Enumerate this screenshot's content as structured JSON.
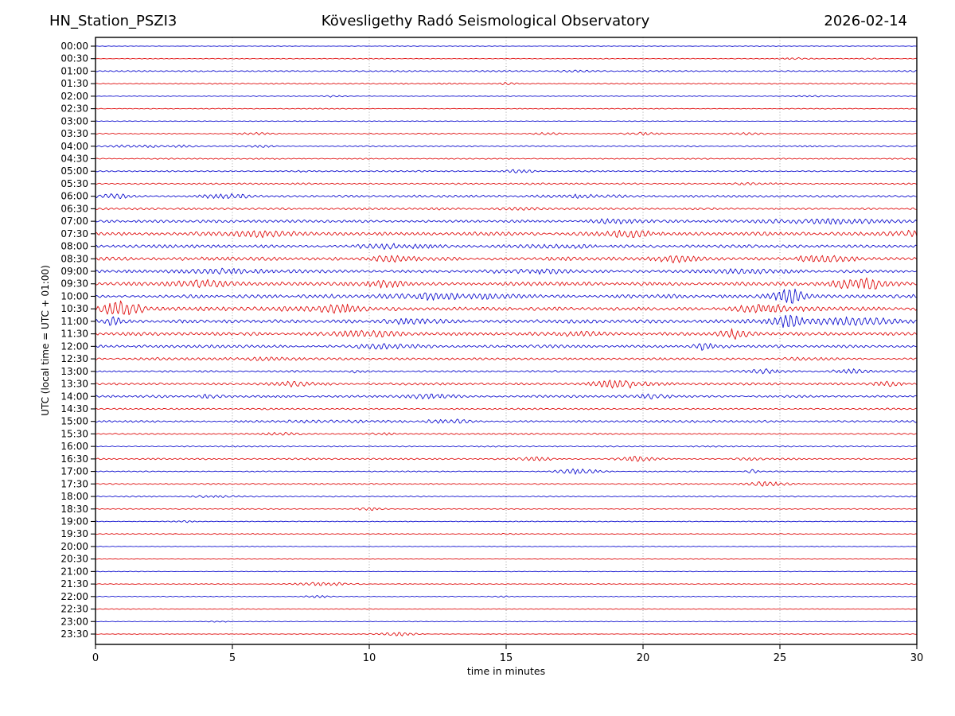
{
  "header": {
    "station": "HN_Station_PSZI3",
    "observatory": "Kövesligethy Radó Seismological Observatory",
    "date": "2026-02-14"
  },
  "chart_data": {
    "type": "line",
    "subtype": "helicorder-dayplot",
    "title": "Kövesligethy Radó Seismological Observatory",
    "station": "HN_Station_PSZI3",
    "date": "2026-02-14",
    "xlabel": "time in minutes",
    "ylabel": "UTC (local time = UTC + 01:00)",
    "xlim": [
      0,
      30
    ],
    "x_ticks": [
      0,
      5,
      10,
      15,
      20,
      25,
      30
    ],
    "minutes_per_row": 30,
    "grid": "vertical dotted lines every 5 minutes",
    "legend": "none",
    "palette": {
      "blue": "#1212cf",
      "red": "#e01212"
    },
    "rows": [
      {
        "label": "00:00",
        "color": "blue",
        "noise_amp": 0.35,
        "events": []
      },
      {
        "label": "00:30",
        "color": "red",
        "noise_amp": 0.45,
        "events": [
          {
            "t_min": 25.6,
            "amp": 0.9,
            "dur_min": 0.4
          },
          {
            "t_min": 28.3,
            "amp": 0.8,
            "dur_min": 0.3
          }
        ]
      },
      {
        "label": "01:00",
        "color": "blue",
        "noise_amp": 0.85,
        "events": [
          {
            "t_min": 17.5,
            "amp": 0.9,
            "dur_min": 0.4
          }
        ]
      },
      {
        "label": "01:30",
        "color": "red",
        "noise_amp": 0.75,
        "events": [
          {
            "t_min": 15.0,
            "amp": 1.4,
            "dur_min": 0.25
          }
        ]
      },
      {
        "label": "02:00",
        "color": "blue",
        "noise_amp": 0.45,
        "events": [
          {
            "t_min": 8.8,
            "amp": 0.9,
            "dur_min": 0.4
          },
          {
            "t_min": 26.0,
            "amp": 0.8,
            "dur_min": 0.3
          }
        ]
      },
      {
        "label": "02:30",
        "color": "red",
        "noise_amp": 0.5,
        "events": []
      },
      {
        "label": "03:00",
        "color": "blue",
        "noise_amp": 0.45,
        "events": []
      },
      {
        "label": "03:30",
        "color": "red",
        "noise_amp": 0.7,
        "events": [
          {
            "t_min": 6.0,
            "amp": 1.1,
            "dur_min": 0.5
          },
          {
            "t_min": 16.5,
            "amp": 1.0,
            "dur_min": 0.4
          },
          {
            "t_min": 20.0,
            "amp": 1.2,
            "dur_min": 0.5
          },
          {
            "t_min": 24.0,
            "amp": 1.0,
            "dur_min": 0.4
          }
        ]
      },
      {
        "label": "04:00",
        "color": "blue",
        "noise_amp": 0.75,
        "events": [
          {
            "t_min": 1.5,
            "amp": 1.7,
            "dur_min": 0.6
          },
          {
            "t_min": 3.2,
            "amp": 1.4,
            "dur_min": 0.3
          },
          {
            "t_min": 6.0,
            "amp": 1.5,
            "dur_min": 0.4
          }
        ]
      },
      {
        "label": "04:30",
        "color": "red",
        "noise_amp": 0.75,
        "events": []
      },
      {
        "label": "05:00",
        "color": "blue",
        "noise_amp": 0.8,
        "events": [
          {
            "t_min": 7.5,
            "amp": 1.2,
            "dur_min": 0.4
          },
          {
            "t_min": 15.5,
            "amp": 1.5,
            "dur_min": 0.5
          }
        ]
      },
      {
        "label": "05:30",
        "color": "red",
        "noise_amp": 1.0,
        "events": [
          {
            "t_min": 24.0,
            "amp": 1.4,
            "dur_min": 0.6
          }
        ]
      },
      {
        "label": "06:00",
        "color": "blue",
        "noise_amp": 1.5,
        "events": [
          {
            "t_min": 0.7,
            "amp": 1.6,
            "dur_min": 0.5
          },
          {
            "t_min": 5.0,
            "amp": 1.8,
            "dur_min": 0.7
          },
          {
            "t_min": 18.0,
            "amp": 2.0,
            "dur_min": 0.7
          }
        ]
      },
      {
        "label": "06:30",
        "color": "red",
        "noise_amp": 1.25,
        "events": [
          {
            "t_min": 15.5,
            "amp": 1.6,
            "dur_min": 0.5
          }
        ]
      },
      {
        "label": "07:00",
        "color": "blue",
        "noise_amp": 1.7,
        "events": [
          {
            "t_min": 19.0,
            "amp": 2.6,
            "dur_min": 0.9
          },
          {
            "t_min": 27.0,
            "amp": 2.2,
            "dur_min": 1.5
          }
        ]
      },
      {
        "label": "07:30",
        "color": "red",
        "noise_amp": 2.1,
        "events": [
          {
            "t_min": 6.0,
            "amp": 2.6,
            "dur_min": 0.9
          },
          {
            "t_min": 19.5,
            "amp": 3.2,
            "dur_min": 0.7
          },
          {
            "t_min": 29.6,
            "amp": 3.6,
            "dur_min": 0.4
          }
        ]
      },
      {
        "label": "08:00",
        "color": "blue",
        "noise_amp": 1.9,
        "events": [
          {
            "t_min": 11.0,
            "amp": 2.6,
            "dur_min": 0.9
          },
          {
            "t_min": 17.0,
            "amp": 2.2,
            "dur_min": 0.8
          }
        ]
      },
      {
        "label": "08:30",
        "color": "red",
        "noise_amp": 2.1,
        "events": [
          {
            "t_min": 11.0,
            "amp": 3.6,
            "dur_min": 0.5
          },
          {
            "t_min": 21.0,
            "amp": 3.6,
            "dur_min": 0.6
          },
          {
            "t_min": 26.5,
            "amp": 2.6,
            "dur_min": 0.8
          }
        ]
      },
      {
        "label": "09:00",
        "color": "blue",
        "noise_amp": 1.9,
        "events": [
          {
            "t_min": 5.0,
            "amp": 2.6,
            "dur_min": 0.9
          },
          {
            "t_min": 16.0,
            "amp": 2.6,
            "dur_min": 1.2
          },
          {
            "t_min": 24.0,
            "amp": 2.4,
            "dur_min": 0.8
          }
        ]
      },
      {
        "label": "09:30",
        "color": "red",
        "noise_amp": 2.1,
        "events": [
          {
            "t_min": 4.0,
            "amp": 3.0,
            "dur_min": 0.7
          },
          {
            "t_min": 10.5,
            "amp": 3.2,
            "dur_min": 0.5
          },
          {
            "t_min": 27.8,
            "amp": 4.6,
            "dur_min": 1.0
          }
        ]
      },
      {
        "label": "10:00",
        "color": "blue",
        "noise_amp": 2.1,
        "events": [
          {
            "t_min": 12.5,
            "amp": 3.6,
            "dur_min": 1.6
          },
          {
            "t_min": 25.4,
            "amp": 7.5,
            "dur_min": 0.4
          }
        ]
      },
      {
        "label": "10:30",
        "color": "red",
        "noise_amp": 2.3,
        "events": [
          {
            "t_min": 0.9,
            "amp": 10.5,
            "dur_min": 0.45
          },
          {
            "t_min": 8.6,
            "amp": 3.6,
            "dur_min": 0.8
          },
          {
            "t_min": 24.5,
            "amp": 3.2,
            "dur_min": 0.8
          }
        ]
      },
      {
        "label": "11:00",
        "color": "blue",
        "noise_amp": 2.1,
        "events": [
          {
            "t_min": 0.6,
            "amp": 4.5,
            "dur_min": 0.3
          },
          {
            "t_min": 11.5,
            "amp": 3.2,
            "dur_min": 0.7
          },
          {
            "t_min": 25.2,
            "amp": 8.5,
            "dur_min": 0.35
          },
          {
            "t_min": 27.5,
            "amp": 3.0,
            "dur_min": 1.2
          }
        ]
      },
      {
        "label": "11:30",
        "color": "red",
        "noise_amp": 2.1,
        "events": [
          {
            "t_min": 10.0,
            "amp": 3.2,
            "dur_min": 0.9
          },
          {
            "t_min": 17.5,
            "amp": 2.8,
            "dur_min": 0.7
          },
          {
            "t_min": 23.4,
            "amp": 6.5,
            "dur_min": 0.35
          }
        ]
      },
      {
        "label": "12:00",
        "color": "blue",
        "noise_amp": 1.7,
        "events": [
          {
            "t_min": 10.5,
            "amp": 2.8,
            "dur_min": 0.7
          },
          {
            "t_min": 22.2,
            "amp": 4.2,
            "dur_min": 0.35
          }
        ]
      },
      {
        "label": "12:30",
        "color": "red",
        "noise_amp": 1.35,
        "events": [
          {
            "t_min": 6.0,
            "amp": 1.8,
            "dur_min": 0.8
          },
          {
            "t_min": 26.0,
            "amp": 1.6,
            "dur_min": 0.6
          }
        ]
      },
      {
        "label": "13:00",
        "color": "blue",
        "noise_amp": 1.15,
        "events": [
          {
            "t_min": 9.5,
            "amp": 1.8,
            "dur_min": 0.25
          },
          {
            "t_min": 24.5,
            "amp": 2.8,
            "dur_min": 0.4
          },
          {
            "t_min": 27.5,
            "amp": 2.2,
            "dur_min": 0.4
          }
        ]
      },
      {
        "label": "13:30",
        "color": "red",
        "noise_amp": 1.5,
        "events": [
          {
            "t_min": 7.3,
            "amp": 3.2,
            "dur_min": 0.4
          },
          {
            "t_min": 19.3,
            "amp": 3.6,
            "dur_min": 0.7
          },
          {
            "t_min": 29.0,
            "amp": 2.6,
            "dur_min": 0.4
          }
        ]
      },
      {
        "label": "14:00",
        "color": "blue",
        "noise_amp": 1.4,
        "events": [
          {
            "t_min": 4.3,
            "amp": 1.8,
            "dur_min": 0.35
          },
          {
            "t_min": 12.3,
            "amp": 2.8,
            "dur_min": 0.5
          },
          {
            "t_min": 20.5,
            "amp": 2.2,
            "dur_min": 0.45
          }
        ]
      },
      {
        "label": "14:30",
        "color": "red",
        "noise_amp": 0.95,
        "events": []
      },
      {
        "label": "15:00",
        "color": "blue",
        "noise_amp": 1.2,
        "events": [
          {
            "t_min": 9.0,
            "amp": 1.0,
            "dur_min": 2.0
          },
          {
            "t_min": 13.0,
            "amp": 1.8,
            "dur_min": 0.6
          }
        ]
      },
      {
        "label": "15:30",
        "color": "red",
        "noise_amp": 0.85,
        "events": [
          {
            "t_min": 6.8,
            "amp": 1.7,
            "dur_min": 0.4
          },
          {
            "t_min": 10.5,
            "amp": 1.4,
            "dur_min": 0.35
          }
        ]
      },
      {
        "label": "16:00",
        "color": "blue",
        "noise_amp": 0.75,
        "events": []
      },
      {
        "label": "16:30",
        "color": "red",
        "noise_amp": 0.95,
        "events": [
          {
            "t_min": 16.0,
            "amp": 1.8,
            "dur_min": 0.5
          },
          {
            "t_min": 19.7,
            "amp": 2.8,
            "dur_min": 0.5
          },
          {
            "t_min": 23.8,
            "amp": 1.4,
            "dur_min": 0.4
          }
        ]
      },
      {
        "label": "17:00",
        "color": "blue",
        "noise_amp": 0.7,
        "events": [
          {
            "t_min": 17.6,
            "amp": 2.6,
            "dur_min": 0.5
          },
          {
            "t_min": 24.0,
            "amp": 3.2,
            "dur_min": 0.12
          }
        ]
      },
      {
        "label": "17:30",
        "color": "red",
        "noise_amp": 0.75,
        "events": [
          {
            "t_min": 24.5,
            "amp": 2.2,
            "dur_min": 0.5
          }
        ]
      },
      {
        "label": "18:00",
        "color": "blue",
        "noise_amp": 0.7,
        "events": [
          {
            "t_min": 4.5,
            "amp": 1.0,
            "dur_min": 0.8
          }
        ]
      },
      {
        "label": "18:30",
        "color": "red",
        "noise_amp": 0.6,
        "events": [
          {
            "t_min": 10.0,
            "amp": 1.7,
            "dur_min": 0.4
          }
        ]
      },
      {
        "label": "19:00",
        "color": "blue",
        "noise_amp": 0.5,
        "events": [
          {
            "t_min": 3.3,
            "amp": 0.8,
            "dur_min": 0.3
          }
        ]
      },
      {
        "label": "19:30",
        "color": "red",
        "noise_amp": 0.55,
        "events": [
          {
            "t_min": 15.0,
            "amp": 1.0,
            "dur_min": 0.3
          }
        ]
      },
      {
        "label": "20:00",
        "color": "blue",
        "noise_amp": 0.4,
        "events": []
      },
      {
        "label": "20:30",
        "color": "red",
        "noise_amp": 0.4,
        "events": []
      },
      {
        "label": "21:00",
        "color": "blue",
        "noise_amp": 0.4,
        "events": []
      },
      {
        "label": "21:30",
        "color": "red",
        "noise_amp": 0.45,
        "events": [
          {
            "t_min": 8.4,
            "amp": 1.8,
            "dur_min": 0.7
          }
        ]
      },
      {
        "label": "22:00",
        "color": "blue",
        "noise_amp": 0.45,
        "events": [
          {
            "t_min": 8.1,
            "amp": 1.6,
            "dur_min": 0.35
          },
          {
            "t_min": 14.8,
            "amp": 0.9,
            "dur_min": 0.25
          }
        ]
      },
      {
        "label": "22:30",
        "color": "red",
        "noise_amp": 0.45,
        "events": []
      },
      {
        "label": "23:00",
        "color": "blue",
        "noise_amp": 0.4,
        "events": [
          {
            "t_min": 4.5,
            "amp": 0.7,
            "dur_min": 0.25
          }
        ]
      },
      {
        "label": "23:30",
        "color": "red",
        "noise_amp": 0.45,
        "events": [
          {
            "t_min": 11.0,
            "amp": 2.0,
            "dur_min": 0.6
          }
        ]
      }
    ]
  }
}
